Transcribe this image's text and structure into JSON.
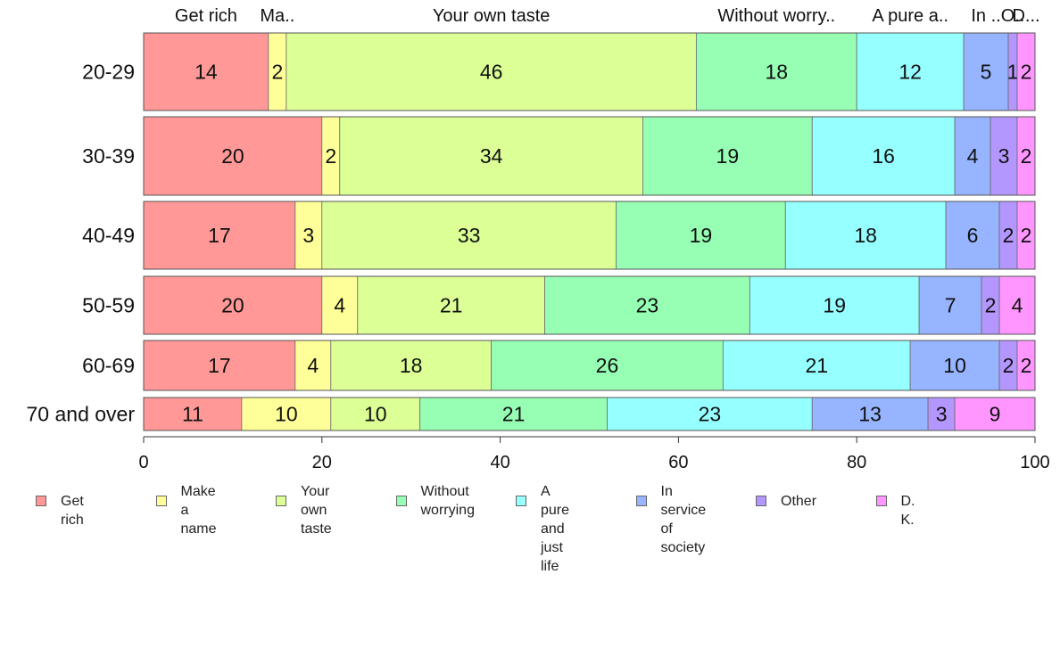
{
  "chart_data": {
    "type": "bar",
    "orientation": "horizontal",
    "stacked": true,
    "categories": [
      "20-29",
      "30-39",
      "40-49",
      "50-59",
      "60-69",
      "70 and over"
    ],
    "series": [
      {
        "name": "Get rich",
        "values": [
          14,
          20,
          17,
          20,
          17,
          11
        ],
        "color": "#ff9896"
      },
      {
        "name": "Make a name",
        "values": [
          2,
          2,
          3,
          4,
          4,
          10
        ],
        "color": "#ffff99"
      },
      {
        "name": "Your own taste",
        "values": [
          46,
          34,
          33,
          21,
          18,
          10
        ],
        "color": "#dcff96"
      },
      {
        "name": "Without worrying",
        "values": [
          18,
          19,
          19,
          23,
          26,
          21
        ],
        "color": "#96ffb4"
      },
      {
        "name": "A pure and just life",
        "values": [
          12,
          16,
          18,
          19,
          21,
          23
        ],
        "color": "#96ffff"
      },
      {
        "name": "In service of society",
        "values": [
          5,
          4,
          6,
          7,
          10,
          13
        ],
        "color": "#96b4ff"
      },
      {
        "name": "Other",
        "values": [
          1,
          3,
          2,
          2,
          2,
          3
        ],
        "color": "#b496ff"
      },
      {
        "name": "D. K.",
        "values": [
          2,
          2,
          2,
          4,
          2,
          9
        ],
        "color": "#ff96ff"
      }
    ],
    "top_labels": [
      "Get rich",
      "Ma..",
      "Your own taste",
      "Without worry..",
      "A pure a..",
      "In ..",
      "O..",
      "D..."
    ],
    "xlim": [
      0,
      100
    ],
    "x_ticks": [
      0,
      20,
      40,
      60,
      80,
      100
    ],
    "x_tick_labels": [
      "0",
      "20",
      "40",
      "60",
      "80",
      "100"
    ],
    "legend": {
      "position": "bottom",
      "items": [
        {
          "lines": [
            "Get rich"
          ]
        },
        {
          "lines": [
            "Make",
            "a name"
          ]
        },
        {
          "lines": [
            "Your own",
            "taste"
          ]
        },
        {
          "lines": [
            "Without",
            "worrying"
          ]
        },
        {
          "lines": [
            "A pure and",
            "just life"
          ]
        },
        {
          "lines": [
            "In service",
            "of society"
          ]
        },
        {
          "lines": [
            "Other"
          ]
        },
        {
          "lines": [
            "D. K."
          ]
        }
      ]
    },
    "grid": false
  }
}
